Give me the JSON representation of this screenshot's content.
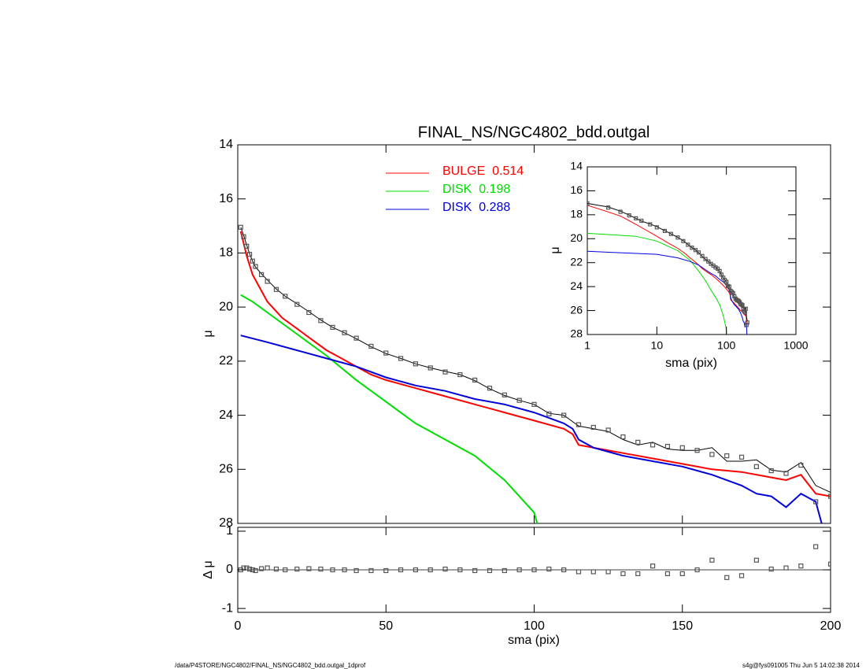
{
  "chart_data": {
    "type": "line",
    "title": "FINAL_NS/NGC4802_bdd.outgal",
    "x_label": "sma (pix)",
    "y_label": "μ",
    "xlim": [
      0,
      200
    ],
    "xticks": [
      0,
      50,
      100,
      150,
      200
    ],
    "ylim": [
      14,
      28
    ],
    "yticks": [
      14,
      16,
      18,
      20,
      22,
      24,
      26,
      28
    ],
    "y_inverted": true,
    "series": [
      {
        "name": "BULGE  0.514",
        "color": "#ff0000",
        "x": [
          1,
          3,
          5,
          10,
          15,
          20,
          25,
          30,
          35,
          40,
          45,
          50,
          60,
          70,
          80,
          90,
          100,
          110,
          113,
          115,
          120,
          130,
          140,
          150,
          160,
          170,
          180,
          185,
          190,
          195,
          200
        ],
        "values": [
          17.2,
          18.1,
          18.8,
          19.8,
          20.4,
          20.8,
          21.2,
          21.6,
          21.9,
          22.2,
          22.5,
          22.7,
          23.0,
          23.3,
          23.6,
          23.9,
          24.2,
          24.5,
          24.7,
          25.1,
          25.2,
          25.4,
          25.6,
          25.8,
          26.0,
          26.1,
          26.3,
          26.4,
          26.2,
          26.9,
          27.0
        ]
      },
      {
        "name": "DISK  0.198",
        "color": "#00dd00",
        "x": [
          1,
          5,
          10,
          20,
          30,
          40,
          50,
          60,
          70,
          80,
          90,
          95,
          100,
          101
        ],
        "values": [
          19.55,
          19.8,
          20.2,
          21.0,
          21.8,
          22.7,
          23.5,
          24.3,
          24.9,
          25.5,
          26.4,
          27.0,
          27.6,
          28.0
        ]
      },
      {
        "name": "DISK  0.288",
        "color": "#0000dd",
        "x": [
          1,
          10,
          20,
          30,
          40,
          50,
          60,
          70,
          80,
          90,
          100,
          110,
          113,
          115,
          120,
          130,
          140,
          150,
          160,
          170,
          175,
          180,
          185,
          190,
          195,
          197
        ],
        "values": [
          21.05,
          21.3,
          21.6,
          21.9,
          22.2,
          22.6,
          22.9,
          23.1,
          23.4,
          23.6,
          23.9,
          24.3,
          24.5,
          24.9,
          25.2,
          25.5,
          25.7,
          25.9,
          26.2,
          26.6,
          26.9,
          27.0,
          27.4,
          26.9,
          27.2,
          28.0
        ]
      }
    ],
    "observed": {
      "color": "#555555",
      "x": [
        1,
        2,
        3,
        4,
        5,
        6,
        8,
        10,
        13,
        16,
        20,
        24,
        28,
        32,
        36,
        40,
        45,
        50,
        55,
        60,
        65,
        70,
        75,
        80,
        85,
        90,
        95,
        100,
        105,
        110,
        115,
        120,
        125,
        130,
        135,
        140,
        145,
        150,
        155,
        160,
        165,
        170,
        175,
        180,
        185,
        190,
        195,
        200
      ],
      "values": [
        17.05,
        17.4,
        17.75,
        18.05,
        18.3,
        18.5,
        18.8,
        19.05,
        19.35,
        19.6,
        19.9,
        20.2,
        20.5,
        20.75,
        20.95,
        21.15,
        21.45,
        21.7,
        21.9,
        22.1,
        22.25,
        22.4,
        22.5,
        22.7,
        23.0,
        23.25,
        23.45,
        23.6,
        23.95,
        24.0,
        24.35,
        24.45,
        24.55,
        24.8,
        25.0,
        25.1,
        25.15,
        25.2,
        25.3,
        25.45,
        25.5,
        25.55,
        25.9,
        26.05,
        26.15,
        25.85,
        27.2,
        27.0
      ],
      "residuals": [
        0,
        0.05,
        0.05,
        0.02,
        0,
        -0.02,
        0.03,
        0.05,
        0.02,
        0,
        0.02,
        0.03,
        0.02,
        0,
        0,
        -0.02,
        -0.02,
        -0.02,
        0,
        0,
        0,
        0.02,
        0,
        -0.02,
        -0.02,
        -0.02,
        0,
        0,
        0.02,
        0,
        -0.05,
        -0.05,
        -0.05,
        -0.1,
        -0.1,
        0.1,
        -0.1,
        -0.1,
        0,
        0.25,
        -0.2,
        -0.15,
        0.25,
        0.02,
        0.05,
        0.1,
        0.6,
        0.15
      ]
    },
    "model": {
      "color": "#000000",
      "x": [
        1,
        2,
        3,
        4,
        5,
        6,
        8,
        10,
        13,
        16,
        20,
        24,
        28,
        32,
        36,
        40,
        45,
        50,
        55,
        60,
        65,
        70,
        75,
        80,
        85,
        90,
        95,
        100,
        105,
        110,
        115,
        120,
        125,
        130,
        135,
        140,
        145,
        150,
        155,
        160,
        165,
        170,
        175,
        180,
        185,
        190,
        195,
        200
      ],
      "values": [
        17.05,
        17.35,
        17.7,
        18.03,
        18.3,
        18.52,
        18.77,
        19.0,
        19.33,
        19.6,
        19.88,
        20.17,
        20.48,
        20.75,
        20.95,
        21.17,
        21.47,
        21.72,
        21.9,
        22.1,
        22.25,
        22.38,
        22.5,
        22.72,
        23.02,
        23.27,
        23.45,
        23.6,
        23.93,
        24.0,
        24.4,
        24.5,
        24.6,
        24.9,
        25.1,
        25.0,
        25.25,
        25.3,
        25.3,
        25.2,
        25.7,
        25.7,
        25.65,
        26.03,
        26.1,
        25.75,
        26.6,
        26.85
      ]
    },
    "residual_label": "Δ μ",
    "residual_ylim": [
      -1.1,
      1.1
    ],
    "residual_yticks": [
      -1,
      0,
      1
    ],
    "inset": {
      "x_label": "sma (pix)",
      "y_label": "μ",
      "log_x": true,
      "xlim": [
        1,
        1000
      ],
      "xticks": [
        1,
        10,
        100,
        1000
      ],
      "ylim": [
        14,
        28
      ],
      "yticks": [
        14,
        16,
        18,
        20,
        22,
        24,
        26,
        28
      ]
    },
    "footer_left": "/data/P4STORE/NGC4802/FINAL_NS/NGC4802_bdd.outgal_1dprof",
    "footer_right": "s4g@fys091005  Thu Jun  5 14:02:38 2014"
  }
}
